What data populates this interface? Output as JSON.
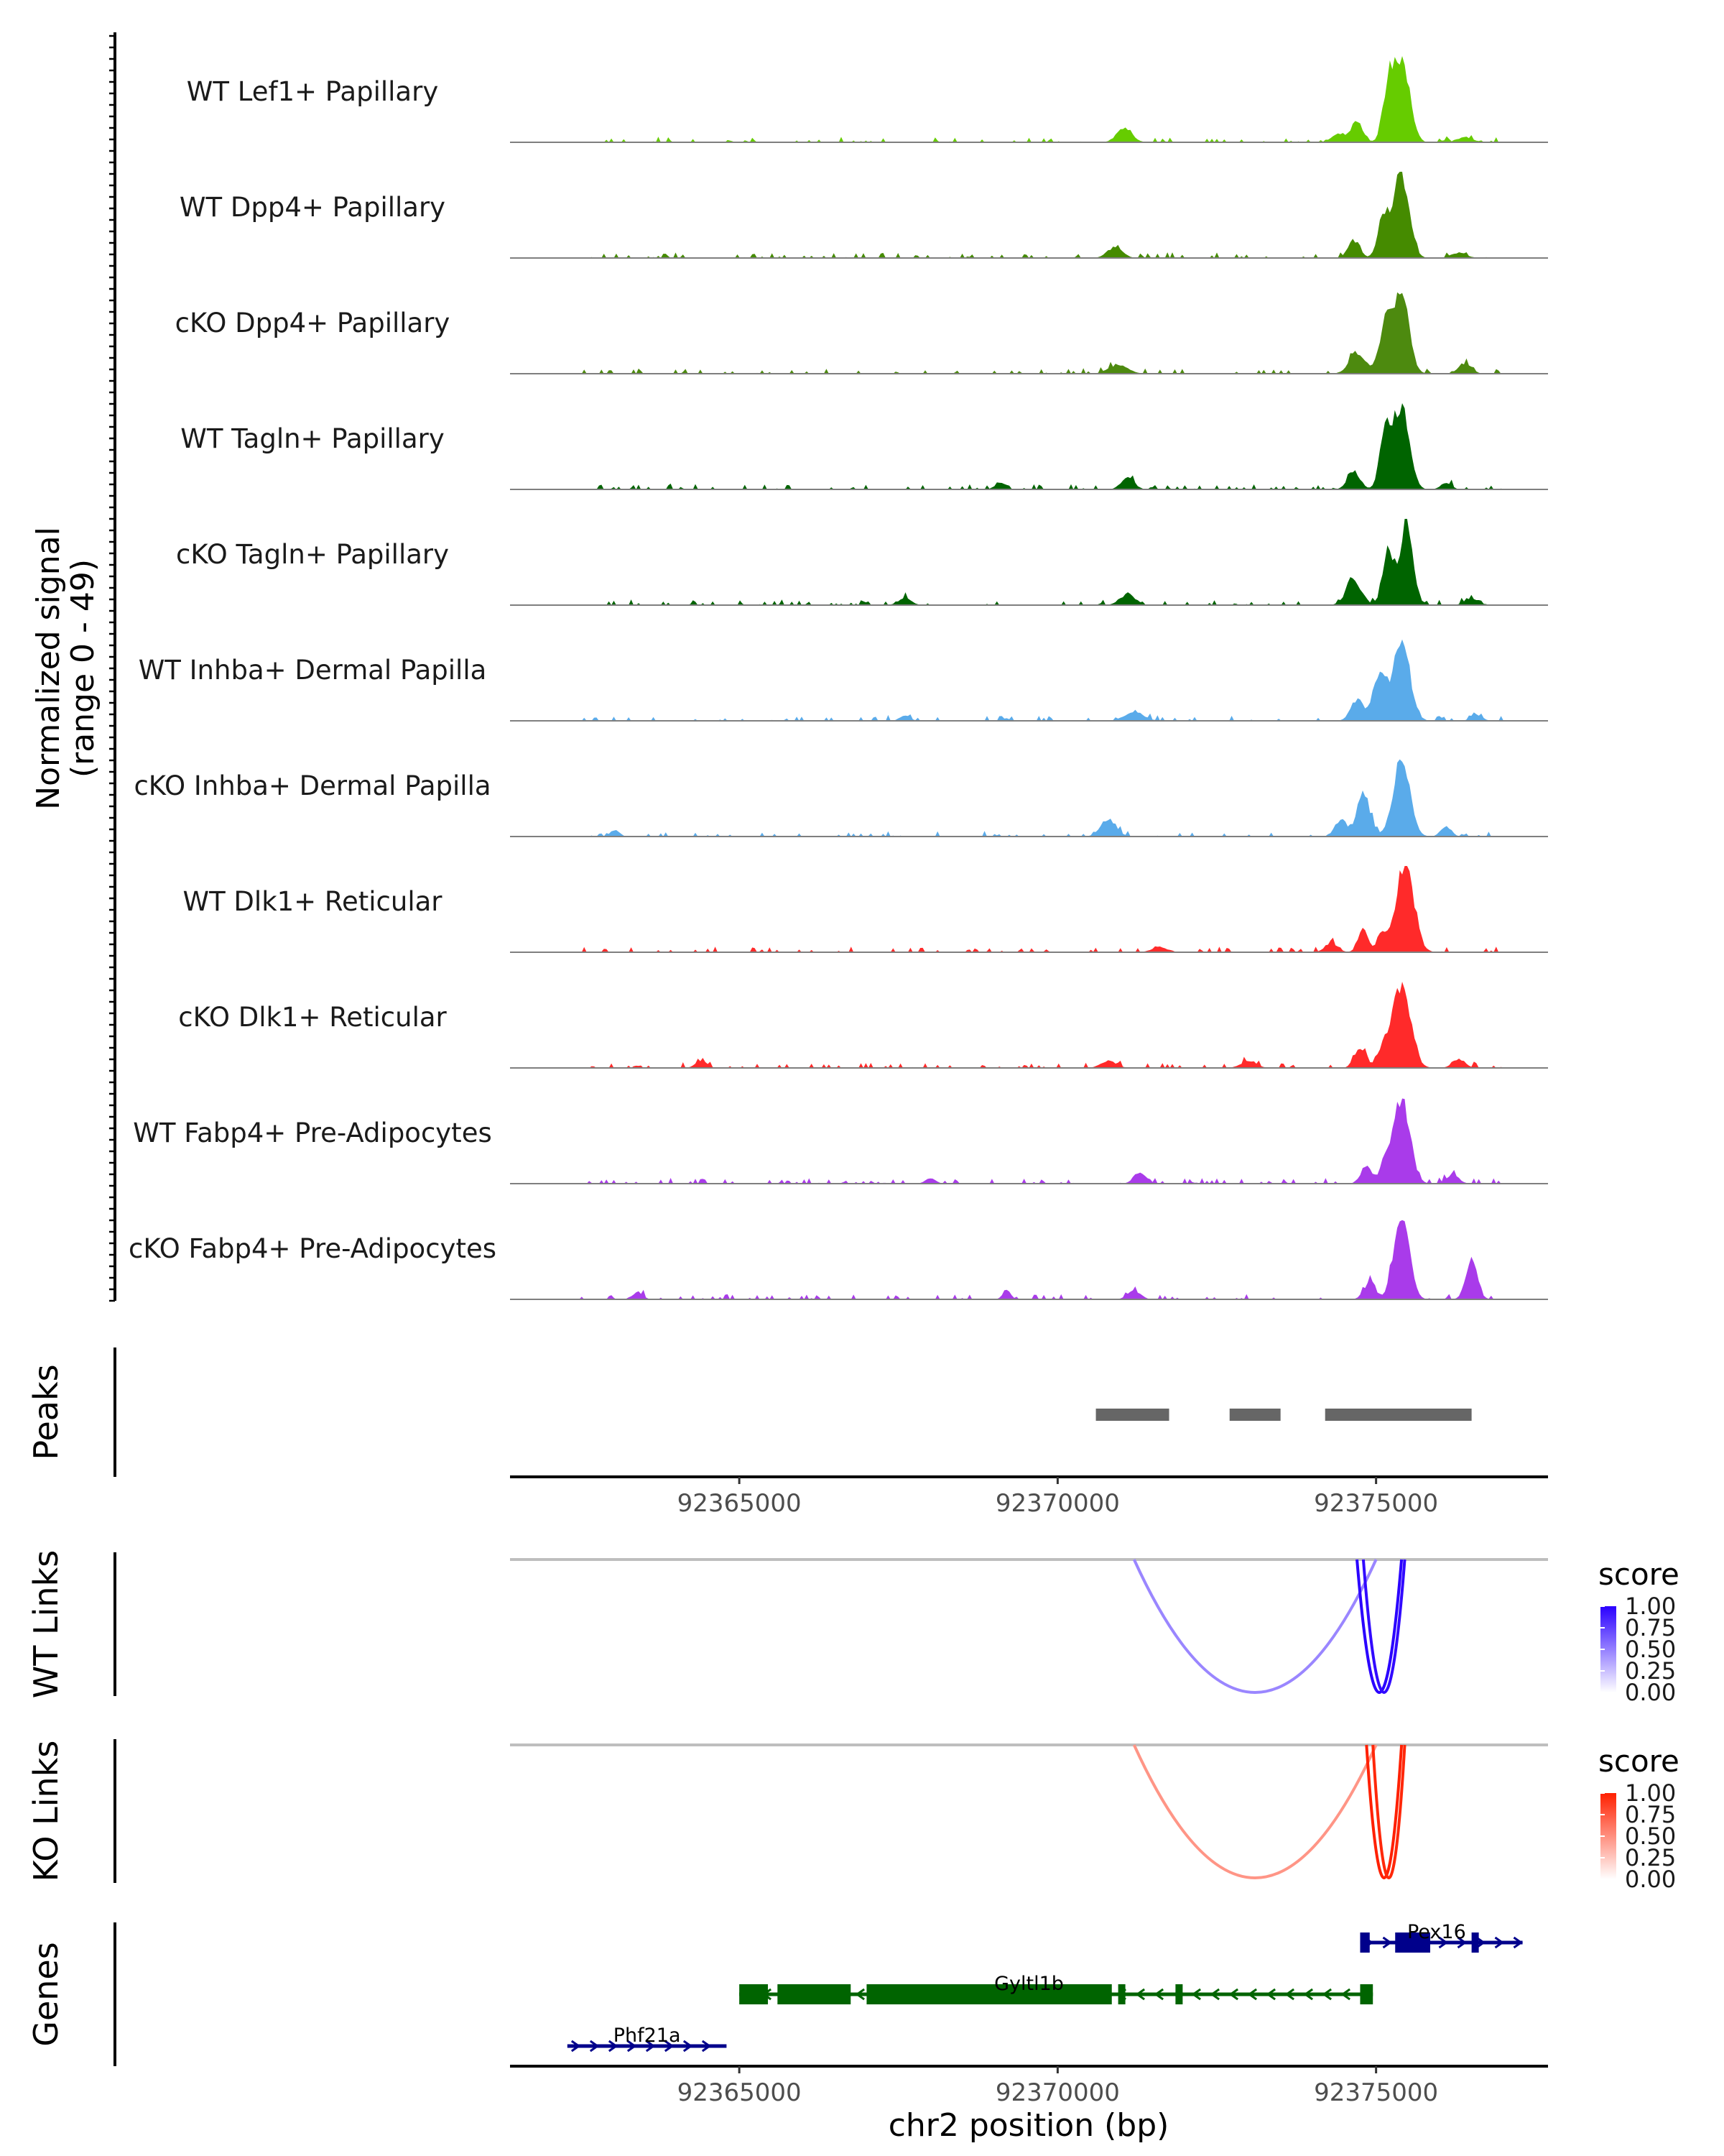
{
  "chart_data": {
    "type": "genome-coverage-tracks",
    "region": {
      "chromosome": "chr2",
      "start": 92361400,
      "end": 92377700
    },
    "xlabel": "chr2 position (bp)",
    "x_ticks": [
      "92365000",
      "92370000",
      "92375000"
    ],
    "x_tick_values": [
      92365000,
      92370000,
      92375000
    ],
    "coverage": {
      "ylabel_line1": "Normalized signal",
      "ylabel_line2": "(range 0 - 49)",
      "ylim": [
        0,
        49
      ],
      "tracks": [
        {
          "name": "WT Lef1+ Papillary",
          "color": "#66cc00",
          "peaks": [
            [
              92375410,
              45,
              120
            ],
            [
              92375200,
              30,
              90
            ],
            [
              92374700,
              12,
              90
            ],
            [
              92371050,
              8,
              120
            ],
            [
              92374400,
              5,
              100
            ],
            [
              92376400,
              3,
              120
            ]
          ]
        },
        {
          "name": "WT Dpp4+ Papillary",
          "color": "#458b00",
          "peaks": [
            [
              92375400,
              48,
              120
            ],
            [
              92375120,
              24,
              90
            ],
            [
              92374650,
              10,
              90
            ],
            [
              92370900,
              6,
              120
            ],
            [
              92376300,
              3,
              120
            ]
          ]
        },
        {
          "name": "cKO Dpp4+ Papillary",
          "color": "#4d8a0f",
          "peaks": [
            [
              92375400,
              42,
              120
            ],
            [
              92375150,
              28,
              100
            ],
            [
              92374700,
              12,
              120
            ],
            [
              92370950,
              5,
              150
            ],
            [
              92376400,
              6,
              100
            ]
          ]
        },
        {
          "name": "WT Tagln+ Papillary",
          "color": "#006400",
          "peaks": [
            [
              92375400,
              48,
              120
            ],
            [
              92375150,
              34,
              90
            ],
            [
              92374650,
              10,
              100
            ],
            [
              92371100,
              7,
              100
            ],
            [
              92369100,
              4,
              80
            ],
            [
              92376100,
              4,
              80
            ]
          ]
        },
        {
          "name": "cKO Tagln+ Papillary",
          "color": "#006400",
          "peaks": [
            [
              92375480,
              46,
              100
            ],
            [
              92375200,
              30,
              90
            ],
            [
              92374650,
              14,
              120
            ],
            [
              92371100,
              6,
              120
            ],
            [
              92367600,
              4,
              100
            ],
            [
              92376500,
              4,
              100
            ]
          ]
        },
        {
          "name": "WT Inhba+ Dermal Papilla",
          "color": "#5aabea",
          "peaks": [
            [
              92375400,
              46,
              130
            ],
            [
              92375050,
              26,
              100
            ],
            [
              92374700,
              12,
              100
            ],
            [
              92371200,
              5,
              150
            ],
            [
              92367600,
              3,
              80
            ],
            [
              92376600,
              3,
              80
            ]
          ]
        },
        {
          "name": "cKO Inhba+ Dermal Papilla",
          "color": "#5aabea",
          "peaks": [
            [
              92375400,
              44,
              130
            ],
            [
              92374800,
              26,
              100
            ],
            [
              92374450,
              10,
              90
            ],
            [
              92370800,
              10,
              120
            ],
            [
              92363050,
              4,
              70
            ],
            [
              92376100,
              6,
              80
            ]
          ]
        },
        {
          "name": "WT Dlk1+ Reticular",
          "color": "#ff2a2a",
          "peaks": [
            [
              92375450,
              49,
              140
            ],
            [
              92374800,
              13,
              80
            ],
            [
              92375100,
              10,
              80
            ],
            [
              92371600,
              3,
              120
            ],
            [
              92374300,
              5,
              100
            ]
          ]
        },
        {
          "name": "cKO Dlk1+ Reticular",
          "color": "#ff2a2a",
          "peaks": [
            [
              92375400,
              48,
              140
            ],
            [
              92374750,
              12,
              90
            ],
            [
              92375100,
              10,
              80
            ],
            [
              92364400,
              4,
              90
            ],
            [
              92370800,
              4,
              120
            ],
            [
              92373000,
              4,
              120
            ],
            [
              92376300,
              5,
              100
            ]
          ]
        },
        {
          "name": "WT Fabp4+ Pre-Adipocytes",
          "color": "#a93bea",
          "peaks": [
            [
              92375400,
              48,
              130
            ],
            [
              92374850,
              10,
              90
            ],
            [
              92375150,
              12,
              80
            ],
            [
              92371300,
              6,
              100
            ],
            [
              92376200,
              5,
              100
            ],
            [
              92368000,
              3,
              80
            ]
          ]
        },
        {
          "name": "cKO Fabp4+ Pre-Adipocytes",
          "color": "#a93bea",
          "peaks": [
            [
              92375400,
              49,
              120
            ],
            [
              92376500,
              22,
              90
            ],
            [
              92374900,
              10,
              90
            ],
            [
              92369200,
              6,
              60
            ],
            [
              92371200,
              5,
              100
            ],
            [
              92363400,
              4,
              80
            ]
          ]
        }
      ]
    },
    "peaks_track": {
      "label": "Peaks",
      "regions": [
        [
          92370600,
          92371750
        ],
        [
          92372700,
          92373500
        ],
        [
          92374200,
          92376500
        ]
      ]
    },
    "links": [
      {
        "label": "WT Links",
        "legend_title": "score",
        "legend_ticks": [
          "1.00",
          "0.75",
          "0.50",
          "0.25",
          "0.00"
        ],
        "colors": {
          "low": "#ffffff",
          "high": "#2a00ff"
        },
        "arcs": [
          {
            "start": 92371200,
            "end": 92375000,
            "score": 0.3
          },
          {
            "start": 92374700,
            "end": 92375400,
            "score": 1.0
          },
          {
            "start": 92374800,
            "end": 92375450,
            "score": 0.95
          }
        ]
      },
      {
        "label": "KO Links",
        "legend_title": "score",
        "legend_ticks": [
          "1.00",
          "0.75",
          "0.50",
          "0.25",
          "0.00"
        ],
        "colors": {
          "low": "#ffffff",
          "high": "#ff2000"
        },
        "arcs": [
          {
            "start": 92371200,
            "end": 92375000,
            "score": 0.3
          },
          {
            "start": 92374850,
            "end": 92375400,
            "score": 1.0
          },
          {
            "start": 92374950,
            "end": 92375450,
            "score": 0.95
          }
        ]
      }
    ],
    "genes": {
      "label": "Genes",
      "items": [
        {
          "name": "Pex16",
          "strand": "+",
          "color": "#00008b",
          "row": 0,
          "start": 92374750,
          "end": 92377300,
          "exons": [
            [
              92374750,
              92374900
            ],
            [
              92375300,
              92375850
            ],
            [
              92376500,
              92376580
            ]
          ],
          "label_pos": 92375950
        },
        {
          "name": "Gyltl1b",
          "strand": "-",
          "color": "#006400",
          "row": 1,
          "start": 92365000,
          "end": 92374950,
          "exons": [
            [
              92365000,
              92365450
            ],
            [
              92365600,
              92366750
            ],
            [
              92367000,
              92370850
            ],
            [
              92370950,
              92371000
            ],
            [
              92371850,
              92371900
            ],
            [
              92374750,
              92374950
            ]
          ],
          "label_pos": 92369550
        },
        {
          "name": "Phf21a",
          "strand": "+",
          "color": "#00008b",
          "row": 2,
          "start": 92362300,
          "end": 92364800,
          "exons": [],
          "label_pos": 92363550
        }
      ]
    }
  }
}
